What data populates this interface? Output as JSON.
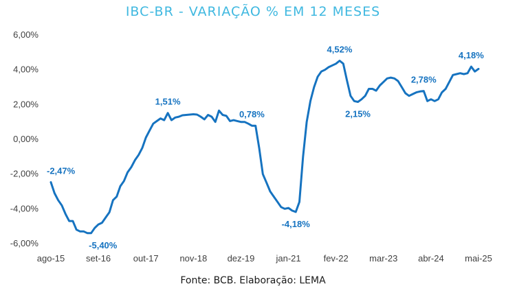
{
  "chart_data": {
    "type": "line",
    "title": "IBC-BR - VARIAÇÃO % EM 12 MESES",
    "source": "Fonte: BCB. Elaboração: LEMA",
    "line_color": "#1673c0",
    "title_color": "#3fb8e0",
    "ylim": [
      -6,
      6
    ],
    "yticks": [
      -6,
      -4,
      -2,
      0,
      2,
      4,
      6
    ],
    "ytick_labels": [
      "-6,00%",
      "-4,00%",
      "-2,00%",
      "0,00%",
      "2,00%",
      "4,00%",
      "6,00%"
    ],
    "xtick_labels": [
      "ago-15",
      "set-16",
      "out-17",
      "nov-18",
      "dez-19",
      "jan-21",
      "fev-22",
      "mar-23",
      "abr-24",
      "mai-25"
    ],
    "grid": "none",
    "series": [
      {
        "values": [
          -2.47,
          -3.1,
          -3.5,
          -3.8,
          -4.3,
          -4.7,
          -4.7,
          -5.2,
          -5.3,
          -5.3,
          -5.4,
          -5.4,
          -5.1,
          -4.9,
          -4.8,
          -4.5,
          -4.2,
          -3.5,
          -3.3,
          -2.7,
          -2.4,
          -1.9,
          -1.6,
          -1.2,
          -0.9,
          -0.5,
          0.1,
          0.5,
          0.9,
          1.05,
          1.2,
          1.1,
          1.51,
          1.1,
          1.25,
          1.3,
          1.38,
          1.4,
          1.42,
          1.44,
          1.42,
          1.3,
          1.15,
          1.4,
          1.3,
          1.0,
          1.65,
          1.4,
          1.35,
          1.05,
          1.1,
          1.05,
          1.0,
          1.0,
          0.9,
          0.78,
          0.78,
          -0.5,
          -2.0,
          -2.5,
          -3.0,
          -3.3,
          -3.6,
          -3.9,
          -4.0,
          -3.95,
          -4.1,
          -4.18,
          -3.6,
          -1.0,
          1.0,
          2.2,
          3.0,
          3.6,
          3.9,
          4.0,
          4.15,
          4.25,
          4.35,
          4.52,
          4.35,
          3.4,
          2.5,
          2.2,
          2.15,
          2.3,
          2.5,
          2.9,
          2.9,
          2.8,
          3.1,
          3.3,
          3.5,
          3.55,
          3.5,
          3.35,
          3.0,
          2.65,
          2.5,
          2.6,
          2.7,
          2.75,
          2.78,
          2.2,
          2.3,
          2.2,
          2.3,
          2.7,
          2.9,
          3.3,
          3.7,
          3.75,
          3.8,
          3.75,
          3.8,
          4.18,
          3.9,
          4.05
        ],
        "tick_indices": [
          0,
          13,
          26,
          39,
          52,
          65,
          78,
          91,
          104,
          117
        ]
      }
    ],
    "data_labels": [
      {
        "text": "-2,47%",
        "index": 0,
        "value": -2.47,
        "pos": "above-right"
      },
      {
        "text": "-5,40%",
        "index": 10,
        "value": -5.4,
        "pos": "below-right"
      },
      {
        "text": "1,51%",
        "index": 32,
        "value": 1.51,
        "pos": "above"
      },
      {
        "text": "0,78%",
        "index": 55,
        "value": 0.78,
        "pos": "above"
      },
      {
        "text": "-4,18%",
        "index": 67,
        "value": -4.18,
        "pos": "below"
      },
      {
        "text": "4,52%",
        "index": 79,
        "value": 4.52,
        "pos": "above"
      },
      {
        "text": "2,15%",
        "index": 84,
        "value": 2.15,
        "pos": "below"
      },
      {
        "text": "2,78%",
        "index": 102,
        "value": 2.78,
        "pos": "above"
      },
      {
        "text": "4,18%",
        "index": 115,
        "value": 4.18,
        "pos": "above"
      }
    ]
  }
}
